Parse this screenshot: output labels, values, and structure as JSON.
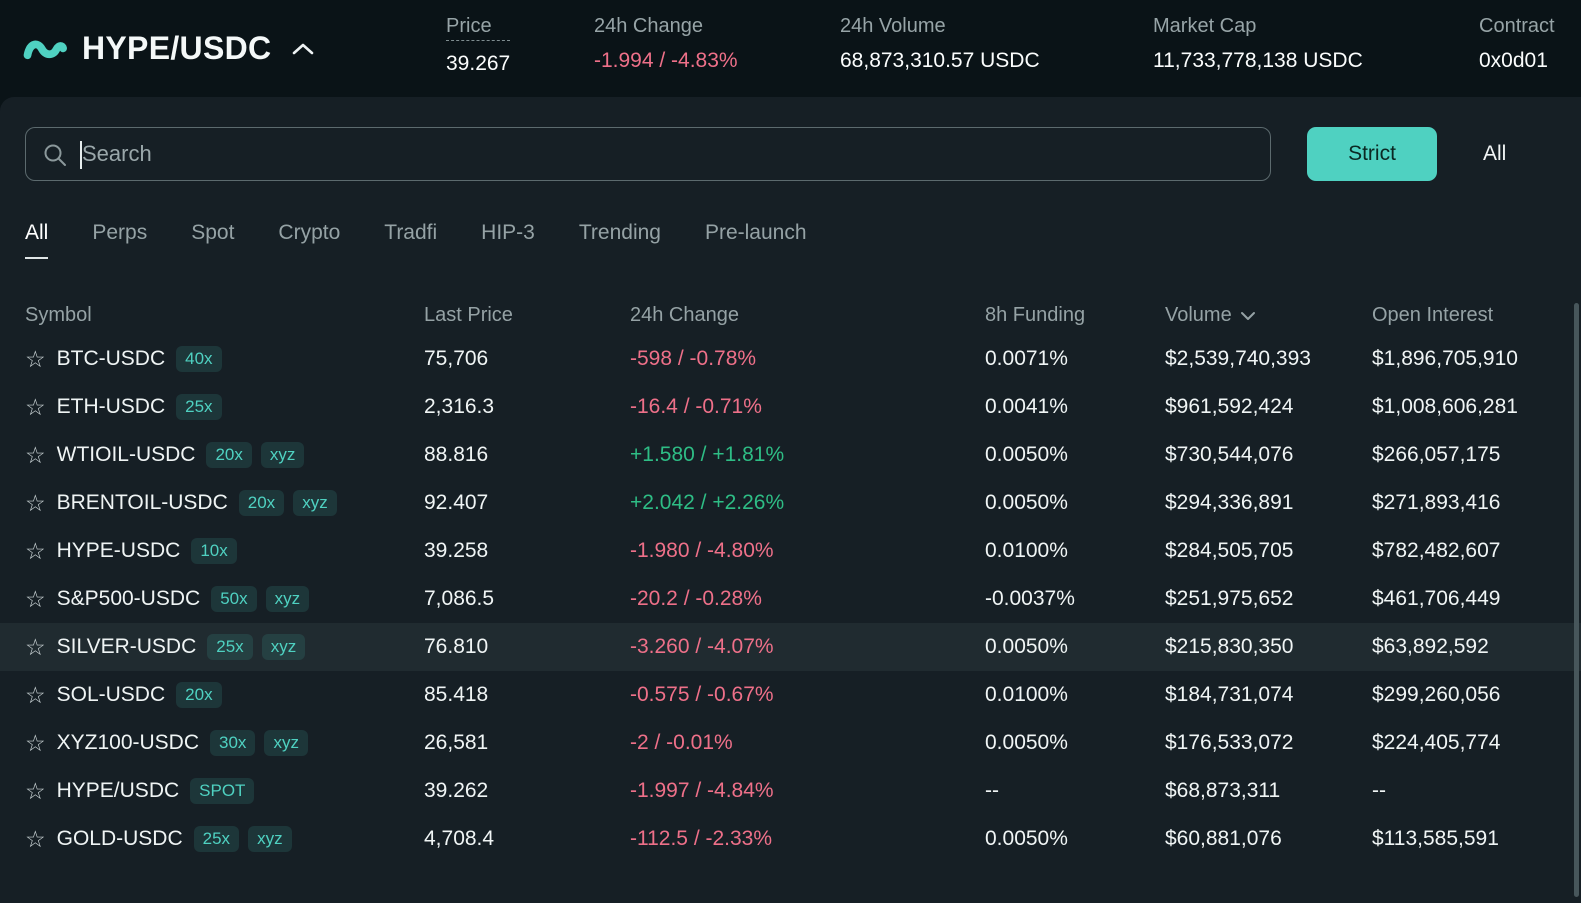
{
  "colors": {
    "accent": "#4fd1c1",
    "negative": "#ee7089",
    "positive": "#2ebd85"
  },
  "header": {
    "pair": "HYPE/USDC",
    "stats": [
      {
        "label": "Price",
        "value": "39.267"
      },
      {
        "label": "24h Change",
        "value": "-1.994 / -4.83%"
      },
      {
        "label": "24h Volume",
        "value": "68,873,310.57 USDC"
      },
      {
        "label": "Market Cap",
        "value": "11,733,778,138 USDC"
      },
      {
        "label": "Contract",
        "value": "0x0d01"
      }
    ]
  },
  "search": {
    "placeholder": "Search",
    "strict_label": "Strict",
    "all_label": "All"
  },
  "tabs": [
    "All",
    "Perps",
    "Spot",
    "Crypto",
    "Tradfi",
    "HIP-3",
    "Trending",
    "Pre-launch"
  ],
  "table": {
    "columns": [
      "Symbol",
      "Last Price",
      "24h Change",
      "8h Funding",
      "Volume",
      "Open Interest"
    ],
    "rows": [
      {
        "symbol": "BTC-USDC",
        "badges": [
          "40x"
        ],
        "price": "75,706",
        "change": "-598 / -0.78%",
        "dir": "down",
        "funding": "0.0071%",
        "volume": "$2,539,740,393",
        "oi": "$1,896,705,910"
      },
      {
        "symbol": "ETH-USDC",
        "badges": [
          "25x"
        ],
        "price": "2,316.3",
        "change": "-16.4 / -0.71%",
        "dir": "down",
        "funding": "0.0041%",
        "volume": "$961,592,424",
        "oi": "$1,008,606,281"
      },
      {
        "symbol": "WTIOIL-USDC",
        "badges": [
          "20x",
          "xyz"
        ],
        "price": "88.816",
        "change": "+1.580 / +1.81%",
        "dir": "up",
        "funding": "0.0050%",
        "volume": "$730,544,076",
        "oi": "$266,057,175"
      },
      {
        "symbol": "BRENTOIL-USDC",
        "badges": [
          "20x",
          "xyz"
        ],
        "price": "92.407",
        "change": "+2.042 / +2.26%",
        "dir": "up",
        "funding": "0.0050%",
        "volume": "$294,336,891",
        "oi": "$271,893,416"
      },
      {
        "symbol": "HYPE-USDC",
        "badges": [
          "10x"
        ],
        "price": "39.258",
        "change": "-1.980 / -4.80%",
        "dir": "down",
        "funding": "0.0100%",
        "volume": "$284,505,705",
        "oi": "$782,482,607"
      },
      {
        "symbol": "S&P500-USDC",
        "badges": [
          "50x",
          "xyz"
        ],
        "price": "7,086.5",
        "change": "-20.2 / -0.28%",
        "dir": "down",
        "funding": "-0.0037%",
        "volume": "$251,975,652",
        "oi": "$461,706,449"
      },
      {
        "symbol": "SILVER-USDC",
        "badges": [
          "25x",
          "xyz"
        ],
        "price": "76.810",
        "change": "-3.260 / -4.07%",
        "dir": "down",
        "funding": "0.0050%",
        "volume": "$215,830,350",
        "oi": "$63,892,592",
        "highlight": true
      },
      {
        "symbol": "SOL-USDC",
        "badges": [
          "20x"
        ],
        "price": "85.418",
        "change": "-0.575 / -0.67%",
        "dir": "down",
        "funding": "0.0100%",
        "volume": "$184,731,074",
        "oi": "$299,260,056"
      },
      {
        "symbol": "XYZ100-USDC",
        "badges": [
          "30x",
          "xyz"
        ],
        "price": "26,581",
        "change": "-2 / -0.01%",
        "dir": "down",
        "funding": "0.0050%",
        "volume": "$176,533,072",
        "oi": "$224,405,774"
      },
      {
        "symbol": "HYPE/USDC",
        "badges": [
          "SPOT"
        ],
        "price": "39.262",
        "change": "-1.997 / -4.84%",
        "dir": "down",
        "funding": "--",
        "volume": "$68,873,311",
        "oi": "--"
      },
      {
        "symbol": "GOLD-USDC",
        "badges": [
          "25x",
          "xyz"
        ],
        "price": "4,708.4",
        "change": "-112.5 / -2.33%",
        "dir": "down",
        "funding": "0.0050%",
        "volume": "$60,881,076",
        "oi": "$113,585,591"
      }
    ]
  }
}
